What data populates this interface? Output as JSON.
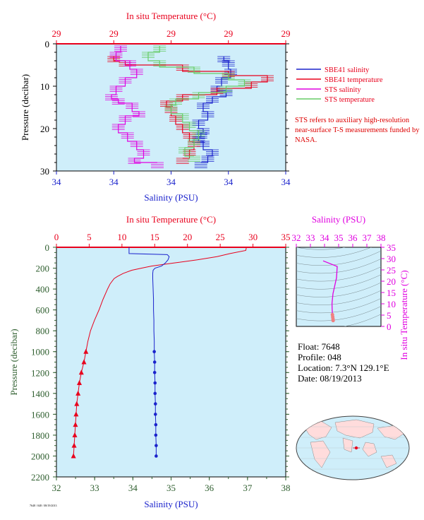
{
  "colors": {
    "plot_bg": "#cfeefa",
    "red": "#e8001c",
    "blue": "#1a22cc",
    "magenta": "#e000e0",
    "green": "#66cc66",
    "salmon": "#f08080",
    "dark_green": "#2e5e2e",
    "axis": "#000000"
  },
  "legend": {
    "items": [
      {
        "label": "SBE41 salinity",
        "color": "#1a22cc"
      },
      {
        "label": "SBE41 temperature",
        "color": "#e8001c"
      },
      {
        "label": "STS salinity",
        "color": "#e000e0"
      },
      {
        "label": "STS temperature",
        "color": "#66cc66"
      }
    ],
    "note": "STS refers to auxiliary high-resolution near-surface T-S measurements funded by NASA."
  },
  "info": {
    "float": "Float: 7648",
    "profile": "Profile: 048",
    "location": "Location: 7.3°N 129.1°E",
    "date": "Date: 08/19/2013"
  },
  "footer_id": "7648 / 048 / 08/19/2013",
  "chart_data": [
    {
      "type": "line",
      "id": "near-surface",
      "top_axis_label": "In situ Temperature (°C)",
      "top_tick_labels": [
        "29",
        "29",
        "29",
        "29",
        "29"
      ],
      "bottom_axis_label": "Salinity (PSU)",
      "bottom_tick_labels": [
        "34",
        "34",
        "34",
        "34",
        "34"
      ],
      "ylabel": "Pressure (decibar)",
      "y_tick_labels": [
        "0",
        "10",
        "20",
        "30"
      ],
      "ylim": [
        0,
        30
      ],
      "x_norm_range": [
        0,
        1
      ],
      "series": [
        {
          "name": "SBE41 salinity",
          "color": "#1a22cc",
          "x": [
            0.73,
            0.75,
            0.76,
            0.72,
            0.7,
            0.74,
            0.68,
            0.64,
            0.66,
            0.62,
            0.64,
            0.63,
            0.62,
            0.64,
            0.68,
            0.66,
            0.63
          ],
          "y": [
            3,
            4,
            6,
            8,
            10,
            11,
            12.5,
            14,
            16,
            18,
            20,
            21,
            22,
            23,
            25,
            26.5,
            28
          ]
        },
        {
          "name": "SBE41 temperature",
          "color": "#e8001c",
          "x": [
            0.25,
            0.3,
            0.55,
            0.75,
            0.92,
            0.85,
            0.7,
            0.55,
            0.48,
            0.5,
            0.52,
            0.55,
            0.58,
            0.6,
            0.58,
            0.55
          ],
          "y": [
            3,
            4,
            5,
            6.5,
            7.5,
            9,
            10.5,
            12,
            13.5,
            15,
            17,
            19,
            21,
            23,
            25,
            27
          ]
        },
        {
          "name": "STS salinity",
          "color": "#e000e0",
          "x": [
            0.28,
            0.26,
            0.32,
            0.35,
            0.3,
            0.26,
            0.24,
            0.27,
            0.33,
            0.36,
            0.3,
            0.27,
            0.31,
            0.35,
            0.38,
            0.34,
            0.44
          ],
          "y": [
            0.5,
            2,
            4,
            6,
            8,
            10,
            12,
            13,
            14,
            16,
            17,
            19,
            21,
            23,
            25,
            27,
            28
          ]
        },
        {
          "name": "STS temperature",
          "color": "#66cc66",
          "x": [
            0.45,
            0.4,
            0.45,
            0.6,
            0.75,
            0.82,
            0.74,
            0.62,
            0.52,
            0.5,
            0.55,
            0.58,
            0.62,
            0.6,
            0.56,
            0.6
          ],
          "y": [
            0.5,
            2,
            4,
            5.5,
            7,
            8.5,
            10,
            11.5,
            13,
            14.5,
            16.5,
            18.5,
            20.5,
            22.5,
            24.5,
            26.5
          ]
        }
      ]
    },
    {
      "type": "line",
      "id": "full-profile",
      "top_axis_label": "In situ Temperature (°C)",
      "top_tick_labels": [
        "0",
        "5",
        "10",
        "15",
        "20",
        "25",
        "30",
        "35"
      ],
      "xlim_temperature": [
        0,
        35
      ],
      "bottom_axis_label": "Salinity (PSU)",
      "bottom_tick_labels": [
        "32",
        "33",
        "34",
        "35",
        "36",
        "37",
        "38"
      ],
      "xlim_salinity": [
        32,
        38
      ],
      "ylabel": "Pressure (decibar)",
      "y_tick_labels": [
        "0",
        "200",
        "400",
        "600",
        "800",
        "1000",
        "1200",
        "1400",
        "1600",
        "1800",
        "2000",
        "2200"
      ],
      "ylim": [
        0,
        2200
      ],
      "series": [
        {
          "name": "temperature",
          "color": "#e8001c",
          "pressure": [
            0,
            30,
            60,
            90,
            120,
            150,
            180,
            200,
            220,
            250,
            280,
            300,
            350,
            400,
            500,
            600,
            700,
            800,
            900,
            1000,
            1100,
            1200,
            1300,
            1400,
            1500,
            1600,
            1700,
            1800,
            1900,
            2000
          ],
          "value": [
            29.0,
            28.9,
            26.5,
            24.5,
            21.5,
            18.0,
            14.5,
            13.0,
            11.5,
            10.2,
            9.3,
            8.8,
            8.2,
            7.8,
            7.1,
            6.5,
            5.8,
            5.2,
            4.8,
            4.5,
            4.2,
            3.8,
            3.5,
            3.3,
            3.1,
            3.0,
            2.9,
            2.8,
            2.7,
            2.6
          ]
        },
        {
          "name": "salinity",
          "color": "#1a22cc",
          "pressure": [
            0,
            60,
            70,
            90,
            120,
            150,
            180,
            200,
            220,
            250,
            300,
            400,
            500,
            600,
            700,
            800,
            900,
            1000,
            1100,
            1200,
            1300,
            1400,
            1500,
            1600,
            1700,
            1800,
            1900,
            2000
          ],
          "value": [
            33.9,
            33.9,
            34.9,
            34.95,
            34.92,
            34.85,
            34.75,
            34.58,
            34.53,
            34.52,
            34.52,
            34.53,
            34.54,
            34.54,
            34.55,
            34.55,
            34.56,
            34.56,
            34.57,
            34.57,
            34.58,
            34.58,
            34.59,
            34.59,
            34.6,
            34.6,
            34.61,
            34.61
          ]
        }
      ]
    },
    {
      "type": "scatter",
      "id": "ts-diagram",
      "top_axis_label": "Salinity (PSU)",
      "top_tick_labels": [
        "32",
        "33",
        "34",
        "35",
        "36",
        "37",
        "38"
      ],
      "xlim": [
        32,
        38
      ],
      "right_axis_label": "In situ Temperature (°C)",
      "right_tick_labels": [
        "35",
        "30",
        "25",
        "20",
        "15",
        "10",
        "5",
        "0"
      ],
      "ylim": [
        0,
        35
      ],
      "series": [
        {
          "name": "T-S",
          "color": "#e000e0",
          "salinity": [
            33.9,
            34.9,
            34.85,
            34.6,
            34.53,
            34.54,
            34.55,
            34.56,
            34.58,
            34.6,
            34.61
          ],
          "temperature": [
            29,
            26.5,
            21.5,
            14.5,
            10.2,
            7.8,
            6.5,
            5.2,
            4.2,
            3.3,
            2.6
          ]
        }
      ]
    }
  ]
}
